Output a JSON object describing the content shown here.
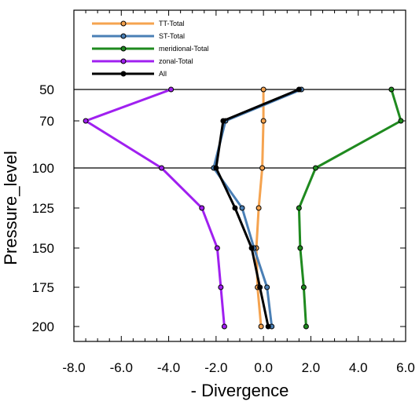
{
  "chart_data": {
    "type": "line",
    "xlabel": "- Divergence",
    "ylabel": "Pressure_level",
    "xlim": [
      -8.0,
      6.0
    ],
    "y_levels": [
      50,
      70,
      100,
      125,
      150,
      175,
      200
    ],
    "x_ticks": [
      "-8.0",
      "-6.0",
      "-4.0",
      "-2.0",
      "0.0",
      "2.0",
      "4.0",
      "6.0"
    ],
    "y_ticks": [
      "50",
      "70",
      "100",
      "125",
      "150",
      "175",
      "200"
    ],
    "reference_lines": [
      50,
      100
    ],
    "legend_position": "top-left",
    "series": [
      {
        "name": "TT-Total",
        "color": "#f5a34f",
        "values": [
          0.0,
          0.0,
          -0.05,
          -0.2,
          -0.3,
          -0.25,
          -0.1
        ]
      },
      {
        "name": "ST-Total",
        "color": "#4a7fb5",
        "values": [
          1.6,
          -1.6,
          -2.1,
          -0.9,
          -0.4,
          0.15,
          0.35
        ]
      },
      {
        "name": "meridional-Total",
        "color": "#1f8a1f",
        "values": [
          5.4,
          5.8,
          2.2,
          1.5,
          1.55,
          1.7,
          1.8
        ]
      },
      {
        "name": "zonal-Total",
        "color": "#a020f0",
        "values": [
          -3.9,
          -7.5,
          -4.3,
          -2.6,
          -1.95,
          -1.8,
          -1.65
        ]
      },
      {
        "name": "All",
        "color": "#000000",
        "values": [
          1.5,
          -1.7,
          -2.0,
          -1.2,
          -0.5,
          -0.15,
          0.2
        ]
      }
    ]
  }
}
